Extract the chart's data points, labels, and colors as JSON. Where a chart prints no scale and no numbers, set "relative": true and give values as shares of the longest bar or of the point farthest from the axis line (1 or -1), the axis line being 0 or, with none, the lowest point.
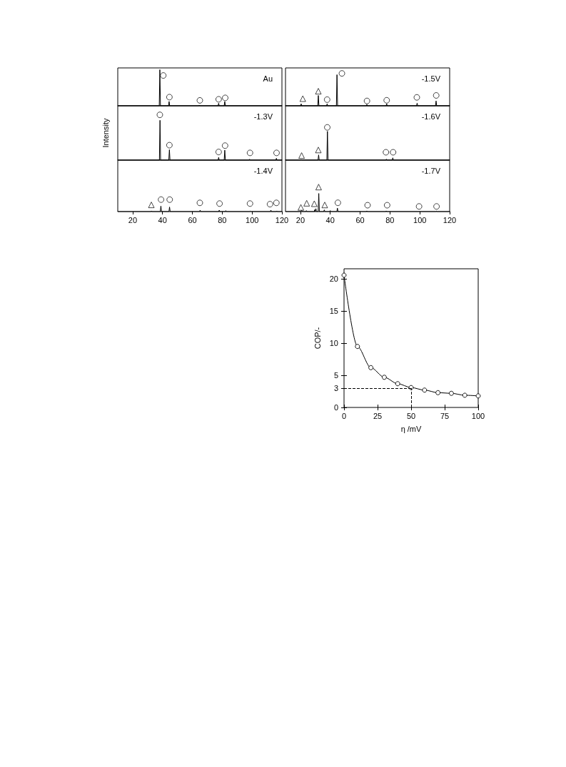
{
  "chart_data": [
    {
      "type": "line",
      "title": "Au",
      "relative": true,
      "tick_labels": false,
      "xlim": [
        10,
        120
      ],
      "xticks": [
        20,
        40,
        60,
        80,
        100,
        120
      ],
      "series": [
        {
          "color": "#000000",
          "x": [
            10,
            37.8,
            38.2,
            38.6,
            44.0,
            44.4,
            44.8,
            64.2,
            64.6,
            65.0,
            77.2,
            77.6,
            78.0,
            81.3,
            81.7,
            82.1,
            120
          ],
          "values": [
            0,
            0,
            1,
            0,
            0,
            0.12,
            0,
            0,
            0.02,
            0,
            0,
            0.07,
            0,
            0,
            0.12,
            0,
            0
          ]
        },
        {
          "type": "scatter",
          "marker": "circle",
          "color": "#000000",
          "x": [
            40.5,
            44.6,
            65.0,
            77.6,
            82.0
          ],
          "values": [
            0.84,
            0.24,
            0.15,
            0.18,
            0.22
          ]
        }
      ]
    },
    {
      "type": "line",
      "title": "-1.3V",
      "ylabel": "Intensity",
      "relative": true,
      "tick_labels": false,
      "xlim": [
        10,
        120
      ],
      "xticks": [
        20,
        40,
        60,
        80,
        100,
        120
      ],
      "series": [
        {
          "color": "#000000",
          "x": [
            10,
            37.9,
            38.3,
            38.7,
            44.2,
            44.6,
            45.0,
            77.2,
            77.6,
            78.0,
            81.3,
            81.7,
            82.1,
            97.9,
            98.3,
            98.7,
            115.9,
            116.3,
            116.7,
            120
          ],
          "values": [
            0,
            0,
            0.88,
            0,
            0,
            0.23,
            0,
            0,
            0.06,
            0,
            0,
            0.22,
            0,
            0,
            0.02,
            0,
            0,
            0.04,
            0,
            0
          ]
        },
        {
          "type": "scatter",
          "marker": "circle",
          "color": "#000000",
          "x": [
            38.2,
            44.6,
            77.6,
            81.9,
            98.6,
            116.4
          ],
          "values": [
            1,
            0.33,
            0.18,
            0.32,
            0.16,
            0.16
          ]
        }
      ]
    },
    {
      "type": "line",
      "title": "-1.4V",
      "relative": true,
      "tick_labels": "x",
      "xlim": [
        10,
        120
      ],
      "xticks": [
        20,
        40,
        60,
        80,
        100,
        120
      ],
      "series": [
        {
          "color": "#000000",
          "x": [
            10,
            32.2,
            32.6,
            33.0,
            38.5,
            38.9,
            39.3,
            44.3,
            44.7,
            45.1,
            64.8,
            65.2,
            65.6,
            77.6,
            78.0,
            78.4,
            82.0,
            82.4,
            82.8,
            98.4,
            98.8,
            99.2,
            112.2,
            112.6,
            113.0,
            116.1,
            116.5,
            116.9,
            120
          ],
          "values": [
            0,
            0,
            0.06,
            0,
            0,
            0.46,
            0,
            0,
            0.38,
            0,
            0,
            0.12,
            0,
            0,
            0.12,
            0,
            0,
            0.08,
            0,
            0,
            0.04,
            0,
            0,
            0.12,
            0,
            0,
            0.06,
            0,
            0
          ]
        },
        {
          "type": "scatter",
          "marker": "triangle",
          "color": "#000000",
          "x": [
            32.5
          ],
          "values": [
            0.56
          ]
        },
        {
          "type": "scatter",
          "marker": "circle",
          "color": "#000000",
          "x": [
            39.0,
            44.8,
            65.0,
            78.2,
            98.6,
            112.0,
            116.3
          ],
          "values": [
            1,
            1,
            0.73,
            0.67,
            0.67,
            0.62,
            0.73
          ]
        }
      ]
    },
    {
      "type": "line",
      "title": "-1.5V",
      "relative": true,
      "tick_labels": false,
      "xlim": [
        10,
        120
      ],
      "xticks": [
        20,
        40,
        60,
        80,
        100,
        120
      ],
      "series": [
        {
          "color": "#000000",
          "x": [
            10,
            20.1,
            20.5,
            20.9,
            31.6,
            32.0,
            32.4,
            37.5,
            37.9,
            38.3,
            44.1,
            44.5,
            44.9,
            64.1,
            64.5,
            64.9,
            77.4,
            77.8,
            78.2,
            97.8,
            98.2,
            98.6,
            110.5,
            110.9,
            111.3,
            120
          ],
          "values": [
            0,
            0,
            0.06,
            0,
            0,
            0.32,
            0,
            0,
            0.06,
            0,
            0,
            0.96,
            0,
            0,
            0.04,
            0,
            0,
            0.06,
            0,
            0,
            0.08,
            0,
            0,
            0.15,
            0,
            0
          ]
        },
        {
          "type": "scatter",
          "marker": "triangle",
          "color": "#000000",
          "x": [
            21.6,
            32.0
          ],
          "values": [
            0.22,
            0.45
          ]
        },
        {
          "type": "scatter",
          "marker": "circle",
          "color": "#000000",
          "x": [
            37.9,
            47.8,
            64.6,
            77.8,
            98.0,
            111.0
          ],
          "values": [
            0.19,
            1,
            0.15,
            0.17,
            0.26,
            0.32
          ]
        }
      ]
    },
    {
      "type": "line",
      "title": "-1.6V",
      "relative": true,
      "tick_labels": false,
      "xlim": [
        10,
        120
      ],
      "xticks": [
        20,
        40,
        60,
        80,
        100,
        120
      ],
      "series": [
        {
          "color": "#000000",
          "x": [
            10,
            20.1,
            20.5,
            20.9,
            31.8,
            32.2,
            32.6,
            37.7,
            38.1,
            38.5,
            77.2,
            77.6,
            78.0,
            81.5,
            81.9,
            82.3,
            120
          ],
          "values": [
            0,
            0,
            0.02,
            0,
            0,
            0.16,
            0,
            0,
            0.88,
            0,
            0,
            0.03,
            0,
            0,
            0.07,
            0,
            0
          ]
        },
        {
          "type": "scatter",
          "marker": "triangle",
          "color": "#000000",
          "x": [
            20.8,
            32.0
          ],
          "values": [
            0.14,
            0.31
          ]
        },
        {
          "type": "scatter",
          "marker": "circle",
          "color": "#000000",
          "x": [
            38.0,
            77.3,
            82.1
          ],
          "values": [
            1,
            0.24,
            0.24
          ]
        }
      ]
    },
    {
      "type": "line",
      "title": "-1.7V",
      "relative": true,
      "tick_labels": "x",
      "xlim": [
        10,
        120
      ],
      "xticks": [
        20,
        40,
        60,
        80,
        100,
        120
      ],
      "series": [
        {
          "color": "#000000",
          "x": [
            10,
            20.4,
            20.8,
            21.2,
            23.6,
            24.0,
            24.4,
            29.3,
            29.6,
            29.9,
            30.1,
            30.4,
            30.7,
            31.9,
            32.3,
            32.7,
            35.6,
            36.0,
            36.4,
            39.6,
            40.0,
            40.4,
            44.4,
            44.8,
            45.2,
            64.1,
            64.5,
            64.9,
            77.1,
            77.5,
            77.9,
            110.6,
            111.0,
            111.4,
            120
          ],
          "values": [
            0,
            0,
            0.06,
            0,
            0,
            0.04,
            0,
            0,
            0.08,
            0,
            0,
            0.12,
            0,
            0,
            0.74,
            0,
            0,
            0.07,
            0,
            0,
            0.04,
            0,
            0,
            0.14,
            0,
            0,
            0.03,
            0,
            0,
            0.03,
            0,
            0,
            0.02,
            0,
            0
          ]
        },
        {
          "type": "scatter",
          "marker": "triangle",
          "color": "#000000",
          "x": [
            20.3,
            24.2,
            29.3,
            32.2,
            36.3
          ],
          "values": [
            0.17,
            0.34,
            0.32,
            1,
            0.27
          ]
        },
        {
          "type": "scatter",
          "marker": "circle",
          "color": "#000000",
          "x": [
            45.1,
            65.0,
            78.1,
            99.5,
            111.2
          ],
          "values": [
            0.36,
            0.26,
            0.26,
            0.21,
            0.21
          ]
        }
      ]
    },
    {
      "type": "line",
      "xlabel": "η /mV",
      "ylabel": "COP/-",
      "xlim": [
        0,
        100
      ],
      "ylim": [
        0,
        21.6
      ],
      "xticks": [
        0,
        25,
        50,
        75,
        100
      ],
      "yticks": [
        0,
        3,
        5,
        10,
        15,
        20
      ],
      "marker": "circle",
      "x": [
        0,
        10,
        20,
        30,
        40,
        50,
        60,
        70,
        80,
        90,
        100
      ],
      "series": [
        {
          "color": "#000000",
          "values": [
            20.6,
            9.5,
            6.2,
            4.7,
            3.7,
            3.1,
            2.7,
            2.3,
            2.2,
            1.9,
            1.8
          ]
        }
      ],
      "ref_lines": [
        {
          "axis": "y",
          "value": 3,
          "line_style": "dashed"
        },
        {
          "axis": "x",
          "value": 50,
          "line_style": "dashed"
        }
      ]
    }
  ]
}
